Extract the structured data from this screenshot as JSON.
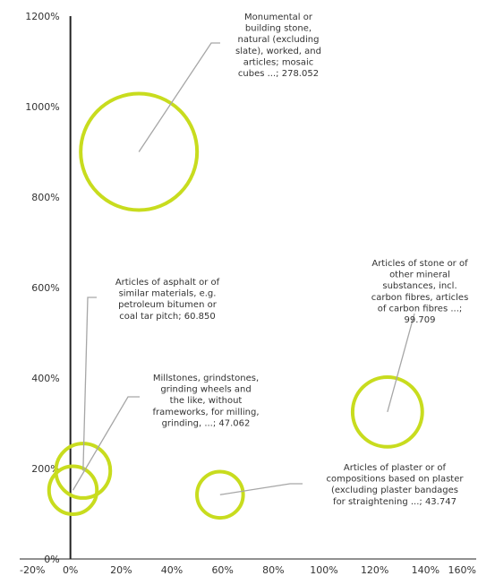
{
  "chart_data": {
    "type": "scatter",
    "subtype": "bubble",
    "x_axis": {
      "range": [
        -0.2,
        1.6
      ],
      "ticks": [
        -0.2,
        0,
        0.2,
        0.4,
        0.6,
        0.8,
        1.0,
        1.2,
        1.4,
        1.6
      ],
      "tick_labels": [
        "-20%",
        "0%",
        "20%",
        "40%",
        "60%",
        "80%",
        "100%",
        "120%",
        "140%",
        "160%"
      ]
    },
    "y_axis": {
      "range": [
        0,
        12
      ],
      "ticks": [
        0,
        2,
        4,
        6,
        8,
        10,
        12
      ],
      "tick_labels": [
        "0%",
        "200%",
        "400%",
        "600%",
        "800%",
        "1000%",
        "1200%"
      ]
    },
    "grid": false,
    "bubble_color": "#c8dc1e",
    "leader_color": "#a6a6a6",
    "points": [
      {
        "x": 0.27,
        "y": 9.0,
        "size": 278.052,
        "label_lines": [
          "Monumental or",
          "building stone,",
          "natural (excluding",
          "slate), worked, and",
          "articles; mosaic",
          "cubes ...; 278.052"
        ]
      },
      {
        "x": 0.05,
        "y": 1.95,
        "size": 60.85,
        "label_lines": [
          "Articles of asphalt or of",
          "similar materials, e.g.",
          "petroleum bitumen or",
          "coal tar pitch; 60.850"
        ]
      },
      {
        "x": 0.01,
        "y": 1.52,
        "size": 47.062,
        "label_lines": [
          "Millstones, grindstones,",
          "grinding wheels and",
          "the like, without",
          "frameworks, for milling,",
          "grinding, ...; 47.062"
        ]
      },
      {
        "x": 1.25,
        "y": 3.25,
        "size": 99.709,
        "label_lines": [
          "Articles of stone or of",
          "other mineral",
          "substances, incl.",
          "carbon fibres, articles",
          "of carbon fibres ...;",
          "99.709"
        ]
      },
      {
        "x": 0.59,
        "y": 1.42,
        "size": 43.747,
        "label_lines": [
          "Articles of plaster or of",
          "compositions based on plaster",
          "(excluding plaster bandages",
          "for straightening ...; 43.747"
        ]
      }
    ]
  }
}
